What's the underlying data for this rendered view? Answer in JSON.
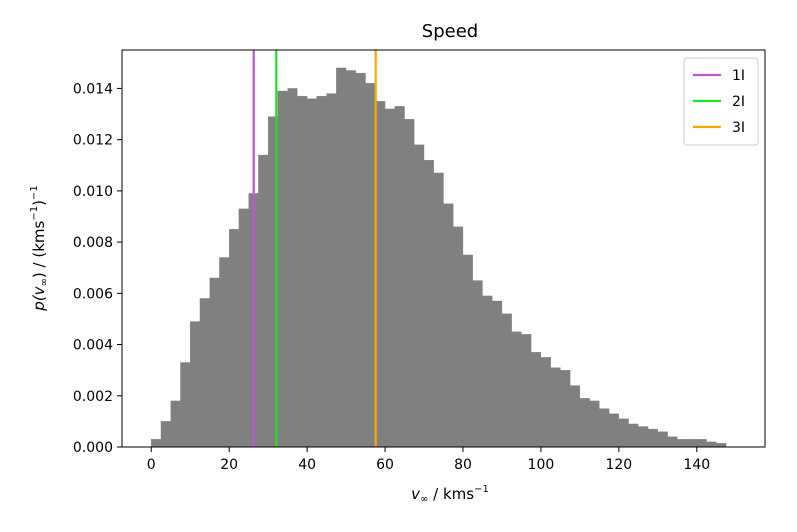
{
  "chart_data": {
    "type": "bar",
    "title": "Speed",
    "xlabel_main": "v",
    "xlabel_sub": "∞",
    "xlabel_rest": " / kms",
    "xlabel_sup": "−1",
    "ylabel_p": "p(v",
    "ylabel_sub": "∞",
    "ylabel_mid": ") / (kms",
    "ylabel_sup1": "−1",
    "ylabel_close": ")",
    "ylabel_sup2": "−1",
    "xlim": [
      -7.5,
      157.5
    ],
    "ylim": [
      0,
      0.0155
    ],
    "x_ticks": [
      0,
      20,
      40,
      60,
      80,
      100,
      120,
      140
    ],
    "x_tick_labels": [
      "0",
      "20",
      "40",
      "60",
      "80",
      "100",
      "120",
      "140"
    ],
    "y_ticks": [
      0,
      0.002,
      0.004,
      0.006,
      0.008,
      0.01,
      0.012,
      0.014
    ],
    "y_tick_labels": [
      "0.000",
      "0.002",
      "0.004",
      "0.006",
      "0.008",
      "0.010",
      "0.012",
      "0.014"
    ],
    "bin_width": 2.5,
    "bin_starts": [
      0,
      2.5,
      5,
      7.5,
      10,
      12.5,
      15,
      17.5,
      20,
      22.5,
      25,
      27.5,
      30,
      32.5,
      35,
      37.5,
      40,
      42.5,
      45,
      47.5,
      50,
      52.5,
      55,
      57.5,
      60,
      62.5,
      65,
      67.5,
      70,
      72.5,
      75,
      77.5,
      80,
      82.5,
      85,
      87.5,
      90,
      92.5,
      95,
      97.5,
      100,
      102.5,
      105,
      107.5,
      110,
      112.5,
      115,
      117.5,
      120,
      122.5,
      125,
      127.5,
      130,
      132.5,
      135,
      137.5,
      140,
      142.5,
      145,
      147.5
    ],
    "values": [
      0.0003,
      0.001,
      0.0018,
      0.0033,
      0.0049,
      0.0058,
      0.0066,
      0.0074,
      0.0085,
      0.0093,
      0.0099,
      0.0114,
      0.0129,
      0.0139,
      0.014,
      0.0137,
      0.0136,
      0.0137,
      0.0138,
      0.0148,
      0.0147,
      0.0146,
      0.0142,
      0.0135,
      0.0132,
      0.0133,
      0.0128,
      0.0118,
      0.0112,
      0.0107,
      0.0095,
      0.0086,
      0.0075,
      0.0065,
      0.0059,
      0.0057,
      0.0052,
      0.0045,
      0.0044,
      0.0037,
      0.0035,
      0.0031,
      0.003,
      0.0024,
      0.0019,
      0.0018,
      0.0015,
      0.0013,
      0.0011,
      0.0009,
      0.0008,
      0.0007,
      0.0006,
      0.0004,
      0.0003,
      0.0003,
      0.0003,
      0.0002,
      0.00015,
      0.0
    ],
    "bar_color": "#808080",
    "vlines": [
      {
        "name": "1I",
        "x": 26.3,
        "color": "#bf55d9"
      },
      {
        "name": "2I",
        "x": 32.1,
        "color": "#22e022"
      },
      {
        "name": "3I",
        "x": 57.6,
        "color": "#ffa500"
      }
    ],
    "legend_position": "top-right",
    "grid": false
  }
}
